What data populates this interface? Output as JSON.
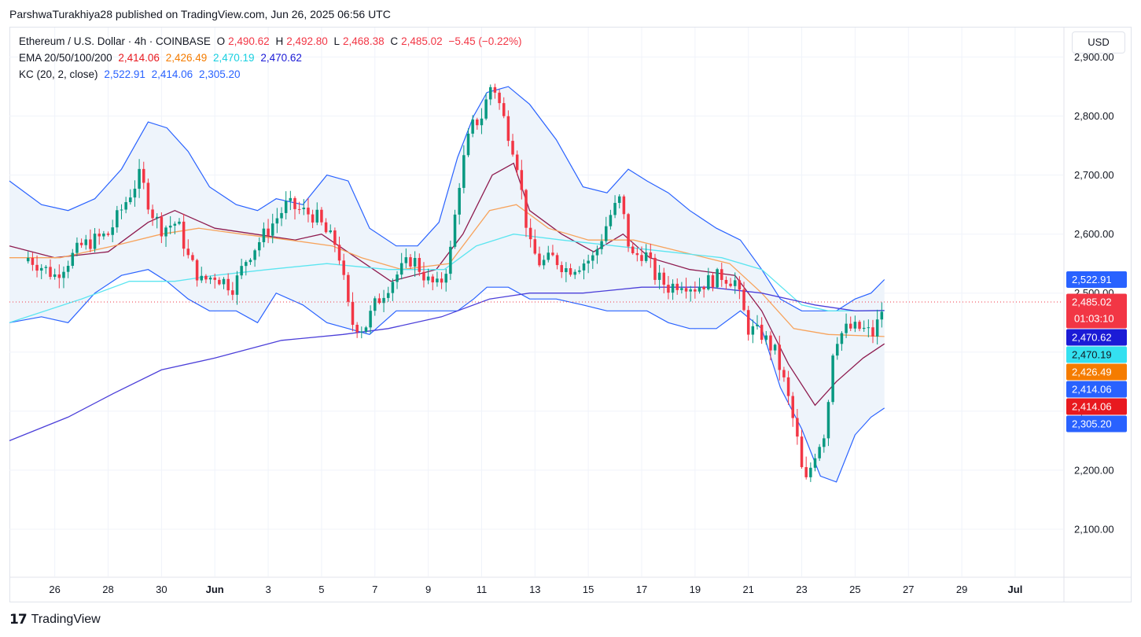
{
  "header": {
    "publisher_line": "ParshwaTurakhiya28 published on TradingView.com, Jun 26, 2025 06:56 UTC"
  },
  "legend": {
    "symbol": "Ethereum / U.S. Dollar · 4h · COINBASE",
    "o_label": "O",
    "o_value": "2,490.62",
    "h_label": "H",
    "h_value": "2,492.80",
    "l_label": "L",
    "l_value": "2,468.38",
    "c_label": "C",
    "c_value": "2,485.02",
    "change": "−5.45 (−0.22%)",
    "ema_label": "EMA 20/50/100/200",
    "ema_values": [
      "2,414.06",
      "2,426.49",
      "2,470.19",
      "2,470.62"
    ],
    "kc_label": "KC (20, 2, close)",
    "kc_values": [
      "2,522.91",
      "2,414.06",
      "2,305.20"
    ]
  },
  "currency_button": "USD",
  "footer": {
    "brand": "TradingView",
    "logo_text": "17"
  },
  "colors": {
    "up": "#089981",
    "down": "#f23645",
    "ema20": "#8e1b4f",
    "ema50": "#f7a35c",
    "ema100": "#5ce5f0",
    "ema200": "#4b3fd9",
    "kc": "#2962ff",
    "kc_fill": "#eef4fb",
    "grid": "#f0f3fa"
  },
  "chart_data": {
    "type": "candlestick",
    "title": "Ethereum / U.S. Dollar · 4h · COINBASE",
    "ylim": [
      2020,
      2950
    ],
    "y_ticks": [
      2100,
      2200,
      2300,
      2400,
      2500,
      2600,
      2700,
      2800,
      2900
    ],
    "y_tick_labels": [
      "2,100.00",
      "2,200.00",
      "2,300.00",
      "2,400.00",
      "2,500.00",
      "2,600.00",
      "2,700.00",
      "2,800.00",
      "2,900.00"
    ],
    "x_labels": [
      "26",
      "28",
      "30",
      "Jun",
      "3",
      "5",
      "7",
      "9",
      "11",
      "13",
      "15",
      "17",
      "19",
      "21",
      "23",
      "25",
      "27",
      "29",
      "Jul"
    ],
    "x_label_days": [
      1,
      3,
      5,
      7,
      9,
      11,
      13,
      15,
      17,
      19,
      21,
      23,
      25,
      27,
      29,
      31,
      33,
      35,
      37
    ],
    "x_range_days": [
      -0.7,
      38.8
    ],
    "bars_per_day": 6,
    "close_series": [
      [
        0,
        2560
      ],
      [
        1,
        2530
      ],
      [
        2,
        2580
      ],
      [
        3,
        2600
      ],
      [
        4.2,
        2700
      ],
      [
        4.6,
        2640
      ],
      [
        5,
        2610
      ],
      [
        5.6,
        2620
      ],
      [
        6,
        2560
      ],
      [
        6.5,
        2520
      ],
      [
        7,
        2530
      ],
      [
        7.7,
        2510
      ],
      [
        8.2,
        2560
      ],
      [
        8.7,
        2590
      ],
      [
        9.2,
        2620
      ],
      [
        9.7,
        2650
      ],
      [
        10.2,
        2640
      ],
      [
        10.8,
        2630
      ],
      [
        11.2,
        2600
      ],
      [
        11.6,
        2580
      ],
      [
        12.1,
        2450
      ],
      [
        12.6,
        2440
      ],
      [
        13,
        2480
      ],
      [
        13.6,
        2520
      ],
      [
        14.4,
        2560
      ],
      [
        15,
        2520
      ],
      [
        15.4,
        2510
      ],
      [
        15.8,
        2560
      ],
      [
        16.2,
        2700
      ],
      [
        16.6,
        2780
      ],
      [
        17,
        2800
      ],
      [
        17.4,
        2860
      ],
      [
        17.8,
        2800
      ],
      [
        18.3,
        2730
      ],
      [
        18.8,
        2580
      ],
      [
        19.2,
        2550
      ],
      [
        19.7,
        2560
      ],
      [
        20.2,
        2540
      ],
      [
        20.7,
        2550
      ],
      [
        21.2,
        2560
      ],
      [
        21.8,
        2630
      ],
      [
        22.2,
        2660
      ],
      [
        22.6,
        2560
      ],
      [
        23.1,
        2570
      ],
      [
        23.5,
        2530
      ],
      [
        24,
        2510
      ],
      [
        24.5,
        2520
      ],
      [
        25,
        2510
      ],
      [
        25.5,
        2520
      ],
      [
        26,
        2530
      ],
      [
        26.5,
        2520
      ],
      [
        27,
        2440
      ],
      [
        27.5,
        2430
      ],
      [
        28,
        2400
      ],
      [
        28.4,
        2340
      ],
      [
        28.8,
        2260
      ],
      [
        29.1,
        2170
      ],
      [
        29.5,
        2230
      ],
      [
        29.9,
        2270
      ],
      [
        30.2,
        2420
      ],
      [
        30.7,
        2440
      ],
      [
        31.2,
        2440
      ],
      [
        31.7,
        2430
      ],
      [
        32.1,
        2485.02
      ]
    ],
    "kc_band": {
      "upper": [
        [
          -0.7,
          2690
        ],
        [
          0.5,
          2650
        ],
        [
          1.5,
          2640
        ],
        [
          2.5,
          2660
        ],
        [
          3.5,
          2710
        ],
        [
          4.5,
          2790
        ],
        [
          5.2,
          2780
        ],
        [
          6,
          2740
        ],
        [
          6.8,
          2680
        ],
        [
          7.8,
          2650
        ],
        [
          8.6,
          2640
        ],
        [
          9.3,
          2660
        ],
        [
          10.3,
          2650
        ],
        [
          11.2,
          2700
        ],
        [
          12,
          2690
        ],
        [
          12.8,
          2610
        ],
        [
          13.8,
          2580
        ],
        [
          14.6,
          2580
        ],
        [
          15.4,
          2620
        ],
        [
          16.1,
          2730
        ],
        [
          16.7,
          2800
        ],
        [
          17.2,
          2840
        ],
        [
          18,
          2850
        ],
        [
          18.8,
          2820
        ],
        [
          19.8,
          2760
        ],
        [
          20.8,
          2680
        ],
        [
          21.7,
          2670
        ],
        [
          22.5,
          2710
        ],
        [
          23.2,
          2690
        ],
        [
          24,
          2670
        ],
        [
          24.8,
          2640
        ],
        [
          25.8,
          2610
        ],
        [
          26.7,
          2590
        ],
        [
          27.5,
          2540
        ],
        [
          28.2,
          2490
        ],
        [
          29,
          2470
        ],
        [
          29.7,
          2470
        ],
        [
          30.3,
          2470
        ],
        [
          31,
          2490
        ],
        [
          31.6,
          2500
        ],
        [
          32.1,
          2522.91
        ]
      ],
      "lower": [
        [
          -0.7,
          2450
        ],
        [
          0.5,
          2460
        ],
        [
          1.5,
          2450
        ],
        [
          2.5,
          2500
        ],
        [
          3.5,
          2530
        ],
        [
          4.5,
          2540
        ],
        [
          5.2,
          2520
        ],
        [
          6,
          2490
        ],
        [
          6.8,
          2470
        ],
        [
          7.8,
          2470
        ],
        [
          8.6,
          2450
        ],
        [
          9.3,
          2500
        ],
        [
          10.3,
          2480
        ],
        [
          11.2,
          2450
        ],
        [
          12,
          2440
        ],
        [
          12.8,
          2430
        ],
        [
          13.8,
          2470
        ],
        [
          14.6,
          2470
        ],
        [
          15.4,
          2470
        ],
        [
          16.1,
          2470
        ],
        [
          16.7,
          2490
        ],
        [
          17.2,
          2510
        ],
        [
          18,
          2510
        ],
        [
          18.8,
          2490
        ],
        [
          19.8,
          2490
        ],
        [
          20.8,
          2480
        ],
        [
          21.7,
          2470
        ],
        [
          22.5,
          2470
        ],
        [
          23.2,
          2470
        ],
        [
          24,
          2450
        ],
        [
          24.8,
          2440
        ],
        [
          25.8,
          2440
        ],
        [
          26.7,
          2470
        ],
        [
          27.5,
          2440
        ],
        [
          28.2,
          2340
        ],
        [
          29,
          2270
        ],
        [
          29.7,
          2190
        ],
        [
          30.3,
          2180
        ],
        [
          31,
          2260
        ],
        [
          31.6,
          2290
        ],
        [
          32.1,
          2305.2
        ]
      ]
    },
    "emas": [
      {
        "name": "EMA 20",
        "value": 2414.06,
        "points": [
          [
            -0.7,
            2580
          ],
          [
            1,
            2560
          ],
          [
            3,
            2570
          ],
          [
            4.5,
            2620
          ],
          [
            5.5,
            2640
          ],
          [
            7,
            2610
          ],
          [
            8.5,
            2600
          ],
          [
            10,
            2590
          ],
          [
            11,
            2600
          ],
          [
            12.3,
            2560
          ],
          [
            13.6,
            2520
          ],
          [
            15.3,
            2540
          ],
          [
            16.3,
            2600
          ],
          [
            17.4,
            2700
          ],
          [
            18.2,
            2720
          ],
          [
            18.8,
            2640
          ],
          [
            20,
            2600
          ],
          [
            21.2,
            2570
          ],
          [
            22.3,
            2600
          ],
          [
            23.3,
            2560
          ],
          [
            24.8,
            2540
          ],
          [
            26.5,
            2530
          ],
          [
            27.5,
            2470
          ],
          [
            28.5,
            2380
          ],
          [
            29.5,
            2310
          ],
          [
            30.3,
            2350
          ],
          [
            31.3,
            2390
          ],
          [
            32.1,
            2414.06
          ]
        ]
      },
      {
        "name": "EMA 50",
        "value": 2426.49,
        "points": [
          [
            -0.7,
            2560
          ],
          [
            1.2,
            2560
          ],
          [
            3.2,
            2580
          ],
          [
            5,
            2600
          ],
          [
            6.4,
            2610
          ],
          [
            8,
            2600
          ],
          [
            9.8,
            2590
          ],
          [
            11.4,
            2580
          ],
          [
            12.5,
            2560
          ],
          [
            14,
            2540
          ],
          [
            15.8,
            2550
          ],
          [
            17.3,
            2640
          ],
          [
            18.3,
            2650
          ],
          [
            19.5,
            2610
          ],
          [
            21,
            2590
          ],
          [
            22.7,
            2590
          ],
          [
            24.5,
            2570
          ],
          [
            26.3,
            2550
          ],
          [
            27.5,
            2500
          ],
          [
            28.7,
            2440
          ],
          [
            30,
            2430
          ],
          [
            32.1,
            2426.49
          ]
        ]
      },
      {
        "name": "EMA 100",
        "value": 2470.19,
        "points": [
          [
            -0.7,
            2450
          ],
          [
            2,
            2490
          ],
          [
            3.8,
            2520
          ],
          [
            5.5,
            2520
          ],
          [
            7,
            2530
          ],
          [
            9,
            2540
          ],
          [
            11.2,
            2550
          ],
          [
            13.5,
            2540
          ],
          [
            15.6,
            2540
          ],
          [
            16.8,
            2580
          ],
          [
            18.2,
            2600
          ],
          [
            20,
            2590
          ],
          [
            22,
            2580
          ],
          [
            24,
            2570
          ],
          [
            26,
            2560
          ],
          [
            27.5,
            2540
          ],
          [
            29,
            2480
          ],
          [
            30,
            2470
          ],
          [
            32.1,
            2470.19
          ]
        ]
      },
      {
        "name": "EMA 200",
        "value": 2470.62,
        "points": [
          [
            -0.7,
            2250
          ],
          [
            1.5,
            2290
          ],
          [
            3.2,
            2330
          ],
          [
            5,
            2370
          ],
          [
            7,
            2390
          ],
          [
            9.5,
            2420
          ],
          [
            11.8,
            2430
          ],
          [
            13.5,
            2440
          ],
          [
            15.5,
            2460
          ],
          [
            17.3,
            2490
          ],
          [
            18.8,
            2500
          ],
          [
            20.8,
            2500
          ],
          [
            23,
            2510
          ],
          [
            25.5,
            2510
          ],
          [
            27.5,
            2500
          ],
          [
            29.5,
            2480
          ],
          [
            31,
            2470
          ],
          [
            32.1,
            2470.62
          ]
        ]
      }
    ],
    "last_price": 2485.02,
    "countdown": "01:03:10",
    "price_labels": [
      {
        "text": "2,522.91",
        "value": 2522.91,
        "color": "#2962ff"
      },
      {
        "text": "2,485.02",
        "value": 2485.02,
        "color": "#f23645",
        "countdown": true
      },
      {
        "text": "2,470.62",
        "value": 2470.62,
        "color": "#1b1bd6"
      },
      {
        "text": "2,470.19",
        "value": 2470.19,
        "color": "#34e0f0",
        "dark_text": true
      },
      {
        "text": "2,426.49",
        "value": 2426.49,
        "color": "#f57c00"
      },
      {
        "text": "2,414.06",
        "value": 2414.06,
        "color": "#2962ff"
      },
      {
        "text": "2,414.06",
        "value": 2414.06,
        "color": "#e8191f"
      },
      {
        "text": "2,305.20",
        "value": 2305.2,
        "color": "#2962ff"
      }
    ]
  }
}
